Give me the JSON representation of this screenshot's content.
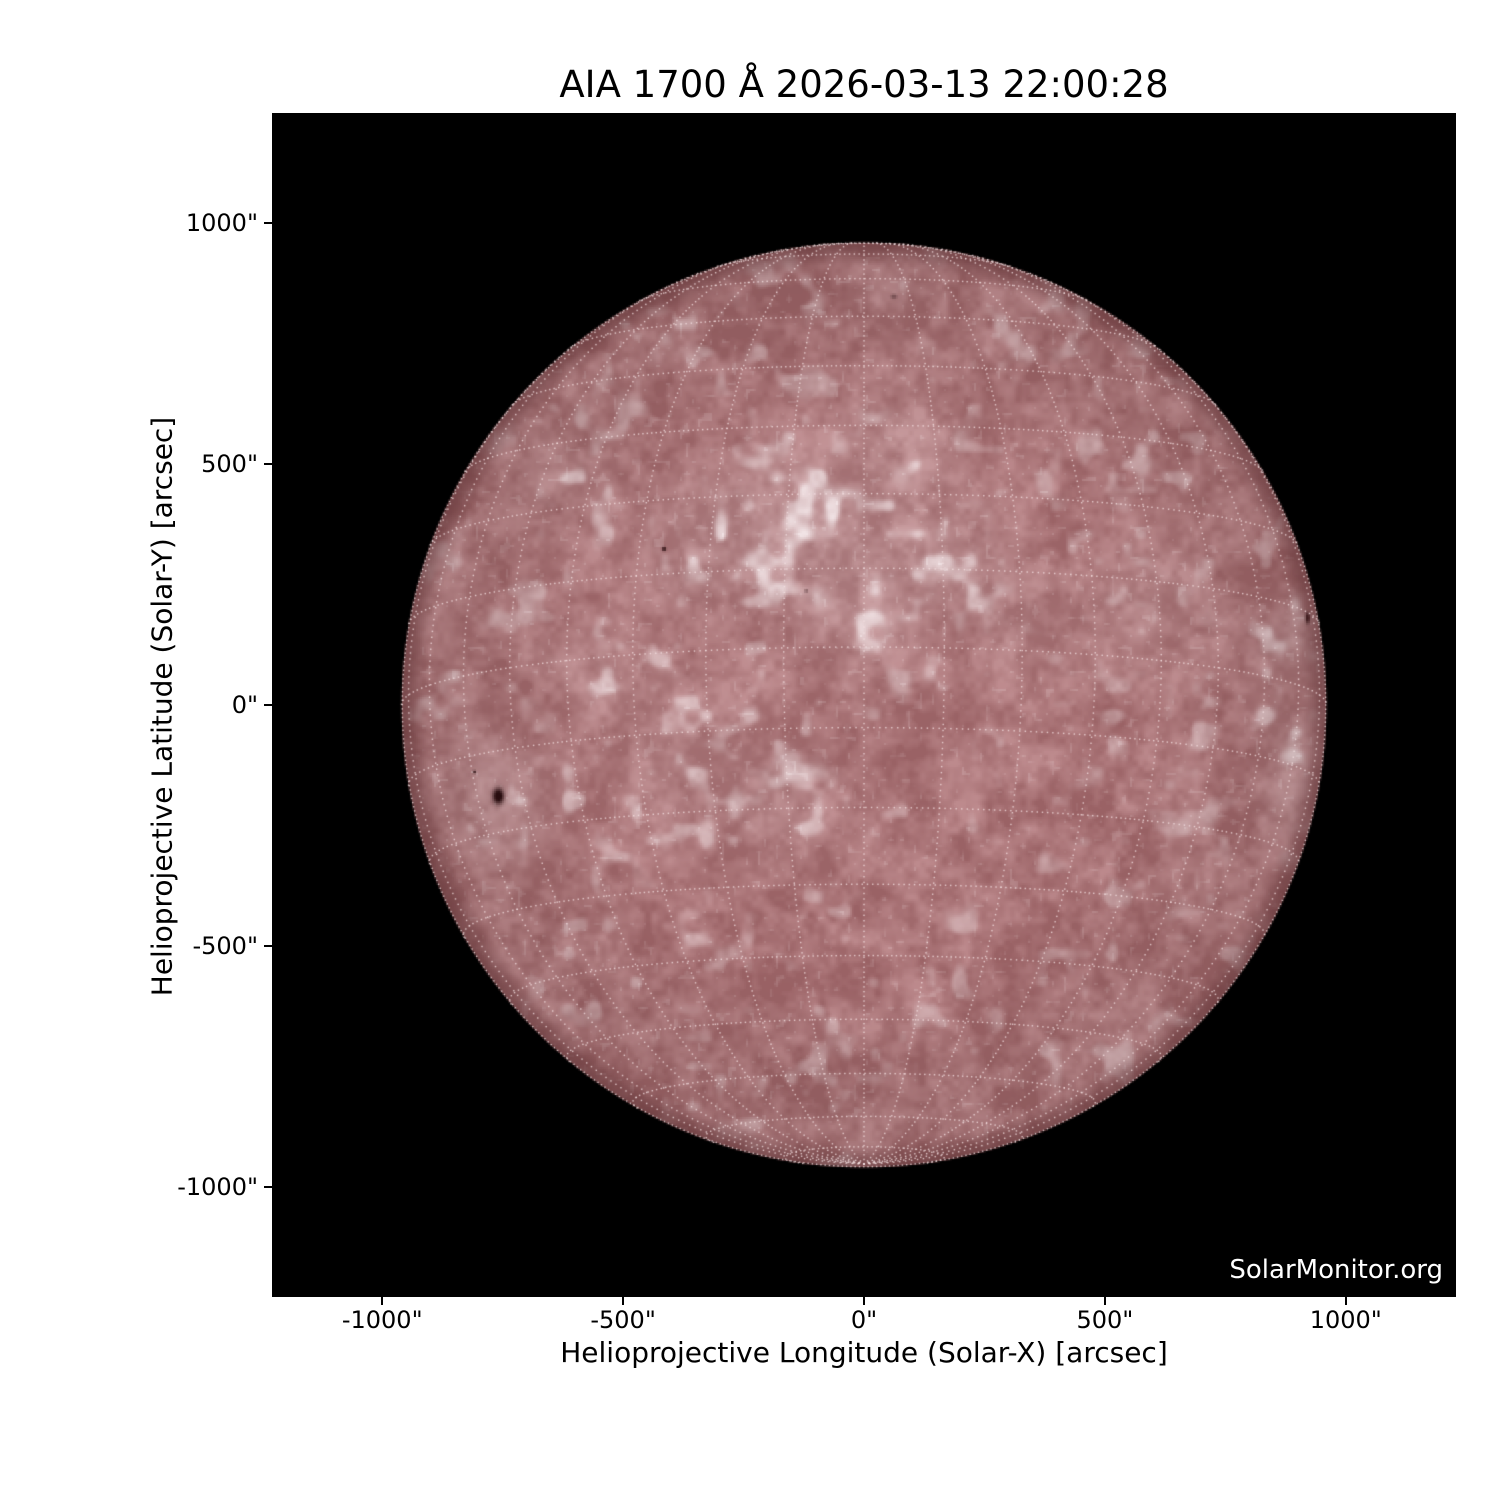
{
  "page": {
    "background": "#ffffff",
    "text_color": "#000000"
  },
  "watermark": "SolarMonitor.org",
  "chart_data": {
    "type": "heatmap",
    "subtype": "solar-full-disk-image",
    "title": "AIA 1700 Å 2026-03-13 22:00:28",
    "instrument": "AIA",
    "wavelength": "1700 Å",
    "observed": "2026-03-13 22:00:28",
    "xlabel": "Helioprojective Longitude (Solar-X) [arcsec]",
    "ylabel": "Helioprojective Latitude (Solar-Y) [arcsec]",
    "xlim": [
      -1228.8,
      1228.8
    ],
    "ylim": [
      -1228.8,
      1228.8
    ],
    "x_ticks": [
      {
        "value": -1000,
        "label": "-1000\""
      },
      {
        "value": -500,
        "label": "-500\""
      },
      {
        "value": 0,
        "label": "0\""
      },
      {
        "value": 500,
        "label": "500\""
      },
      {
        "value": 1000,
        "label": "1000\""
      }
    ],
    "y_ticks": [
      {
        "value": 1000,
        "label": "1000\""
      },
      {
        "value": 500,
        "label": "500\""
      },
      {
        "value": 0,
        "label": "0\""
      },
      {
        "value": -500,
        "label": "-500\""
      },
      {
        "value": -1000,
        "label": "-1000\""
      }
    ],
    "grid": {
      "kind": "heliographic",
      "step_deg": 10,
      "style": "dotted",
      "color": "#f5e2e3",
      "b0_deg": -7.2
    },
    "plot_background": "#000000",
    "solar_disk": {
      "radius_arcsec": 960,
      "center_arcsec": [
        0,
        0
      ],
      "colors": {
        "quiet_dark": "#9a6265",
        "quiet_mid": "#bd8a8d",
        "network_bright": "#f1e3e5",
        "limb_rim": "#6e3c3f",
        "sunspot": "#2a0e10"
      }
    },
    "sunspots": [
      {
        "x_arcsec": -761,
        "y_arcsec": -187,
        "rx_arcsec": 16,
        "ry_arcsec": 23,
        "strength": 1.0
      },
      {
        "x_arcsec": -811,
        "y_arcsec": -137,
        "rx_arcsec": 5,
        "ry_arcsec": 5,
        "strength": 0.7
      },
      {
        "x_arcsec": 919,
        "y_arcsec": 183,
        "rx_arcsec": 7,
        "ry_arcsec": 17,
        "strength": 0.95
      },
      {
        "x_arcsec": -417,
        "y_arcsec": 326,
        "rx_arcsec": 6,
        "ry_arcsec": 6,
        "strength": 0.85
      },
      {
        "x_arcsec": 60,
        "y_arcsec": 850,
        "rx_arcsec": 9,
        "ry_arcsec": 7,
        "strength": 0.35
      },
      {
        "x_arcsec": -122,
        "y_arcsec": 239,
        "rx_arcsec": 5,
        "ry_arcsec": 5,
        "strength": 0.4
      }
    ],
    "plage_regions": [
      {
        "x_arcsec": 75,
        "y_arcsec": 529,
        "sigma_arcsec": 95,
        "strength": 0.5
      },
      {
        "x_arcsec": -154,
        "y_arcsec": 384,
        "sigma_arcsec": 110,
        "strength": 0.55
      },
      {
        "x_arcsec": -8,
        "y_arcsec": 239,
        "sigma_arcsec": 120,
        "strength": 0.6
      },
      {
        "x_arcsec": -340,
        "y_arcsec": 342,
        "sigma_arcsec": 100,
        "strength": 0.55
      },
      {
        "x_arcsec": 199,
        "y_arcsec": 301,
        "sigma_arcsec": 85,
        "strength": 0.45
      },
      {
        "x_arcsec": 573,
        "y_arcsec": 197,
        "sigma_arcsec": 90,
        "strength": 0.5
      },
      {
        "x_arcsec": 344,
        "y_arcsec": 176,
        "sigma_arcsec": 70,
        "strength": 0.35
      },
      {
        "x_arcsec": -761,
        "y_arcsec": -187,
        "sigma_arcsec": 90,
        "strength": 0.7
      },
      {
        "x_arcsec": -382,
        "y_arcsec": -114,
        "sigma_arcsec": 110,
        "strength": 0.4
      },
      {
        "x_arcsec": -174,
        "y_arcsec": -197,
        "sigma_arcsec": 85,
        "strength": 0.4
      },
      {
        "x_arcsec": 904,
        "y_arcsec": 135,
        "sigma_arcsec": 60,
        "strength": 0.8
      },
      {
        "x_arcsec": 894,
        "y_arcsec": -197,
        "sigma_arcsec": 55,
        "strength": 0.65
      },
      {
        "x_arcsec": 880,
        "y_arcsec": -60,
        "sigma_arcsec": 50,
        "strength": 0.5
      },
      {
        "x_arcsec": -631,
        "y_arcsec": 487,
        "sigma_arcsec": 80,
        "strength": 0.3
      },
      {
        "x_arcsec": -560,
        "y_arcsec": 70,
        "sigma_arcsec": 90,
        "strength": 0.3
      },
      {
        "x_arcsec": 60,
        "y_arcsec": 850,
        "sigma_arcsec": 60,
        "strength": 0.25
      }
    ]
  }
}
